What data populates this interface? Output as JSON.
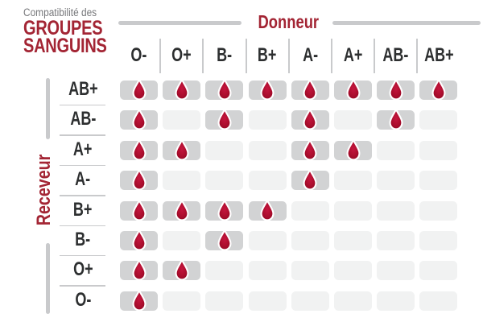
{
  "header": {
    "kicker": "Compatibilité des",
    "title_line1": "GROUPES",
    "title_line2": "SANGUINS"
  },
  "axes": {
    "donor": "Donneur",
    "receiver": "Receveur"
  },
  "chart_data": {
    "type": "table",
    "title": "Compatibilité des GROUPES SANGUINS",
    "column_axis_label": "Donneur",
    "row_axis_label": "Receveur",
    "columns": [
      "O-",
      "O+",
      "B-",
      "B+",
      "A-",
      "A+",
      "AB-",
      "AB+"
    ],
    "rows": [
      "AB+",
      "AB-",
      "A+",
      "A-",
      "B+",
      "B-",
      "O+",
      "O-"
    ],
    "matrix": [
      [
        1,
        1,
        1,
        1,
        1,
        1,
        1,
        1
      ],
      [
        1,
        0,
        1,
        0,
        1,
        0,
        1,
        0
      ],
      [
        1,
        1,
        0,
        0,
        1,
        1,
        0,
        0
      ],
      [
        1,
        0,
        0,
        0,
        1,
        0,
        0,
        0
      ],
      [
        1,
        1,
        1,
        1,
        0,
        0,
        0,
        0
      ],
      [
        1,
        0,
        1,
        0,
        0,
        0,
        0,
        0
      ],
      [
        1,
        1,
        0,
        0,
        0,
        0,
        0,
        0
      ],
      [
        1,
        0,
        0,
        0,
        0,
        0,
        0,
        0
      ]
    ],
    "marker_meaning": "blood-drop icon = compatible, empty cell = incompatible"
  },
  "colors": {
    "accent_red": "#A32534",
    "drop_red": "#AC0E2E",
    "text_dark": "#2D2F30",
    "text_gray": "#77787B",
    "line_gray": "#C9CACC",
    "cell_filled": "#D2D3D4",
    "cell_empty": "#F1F2F2"
  }
}
